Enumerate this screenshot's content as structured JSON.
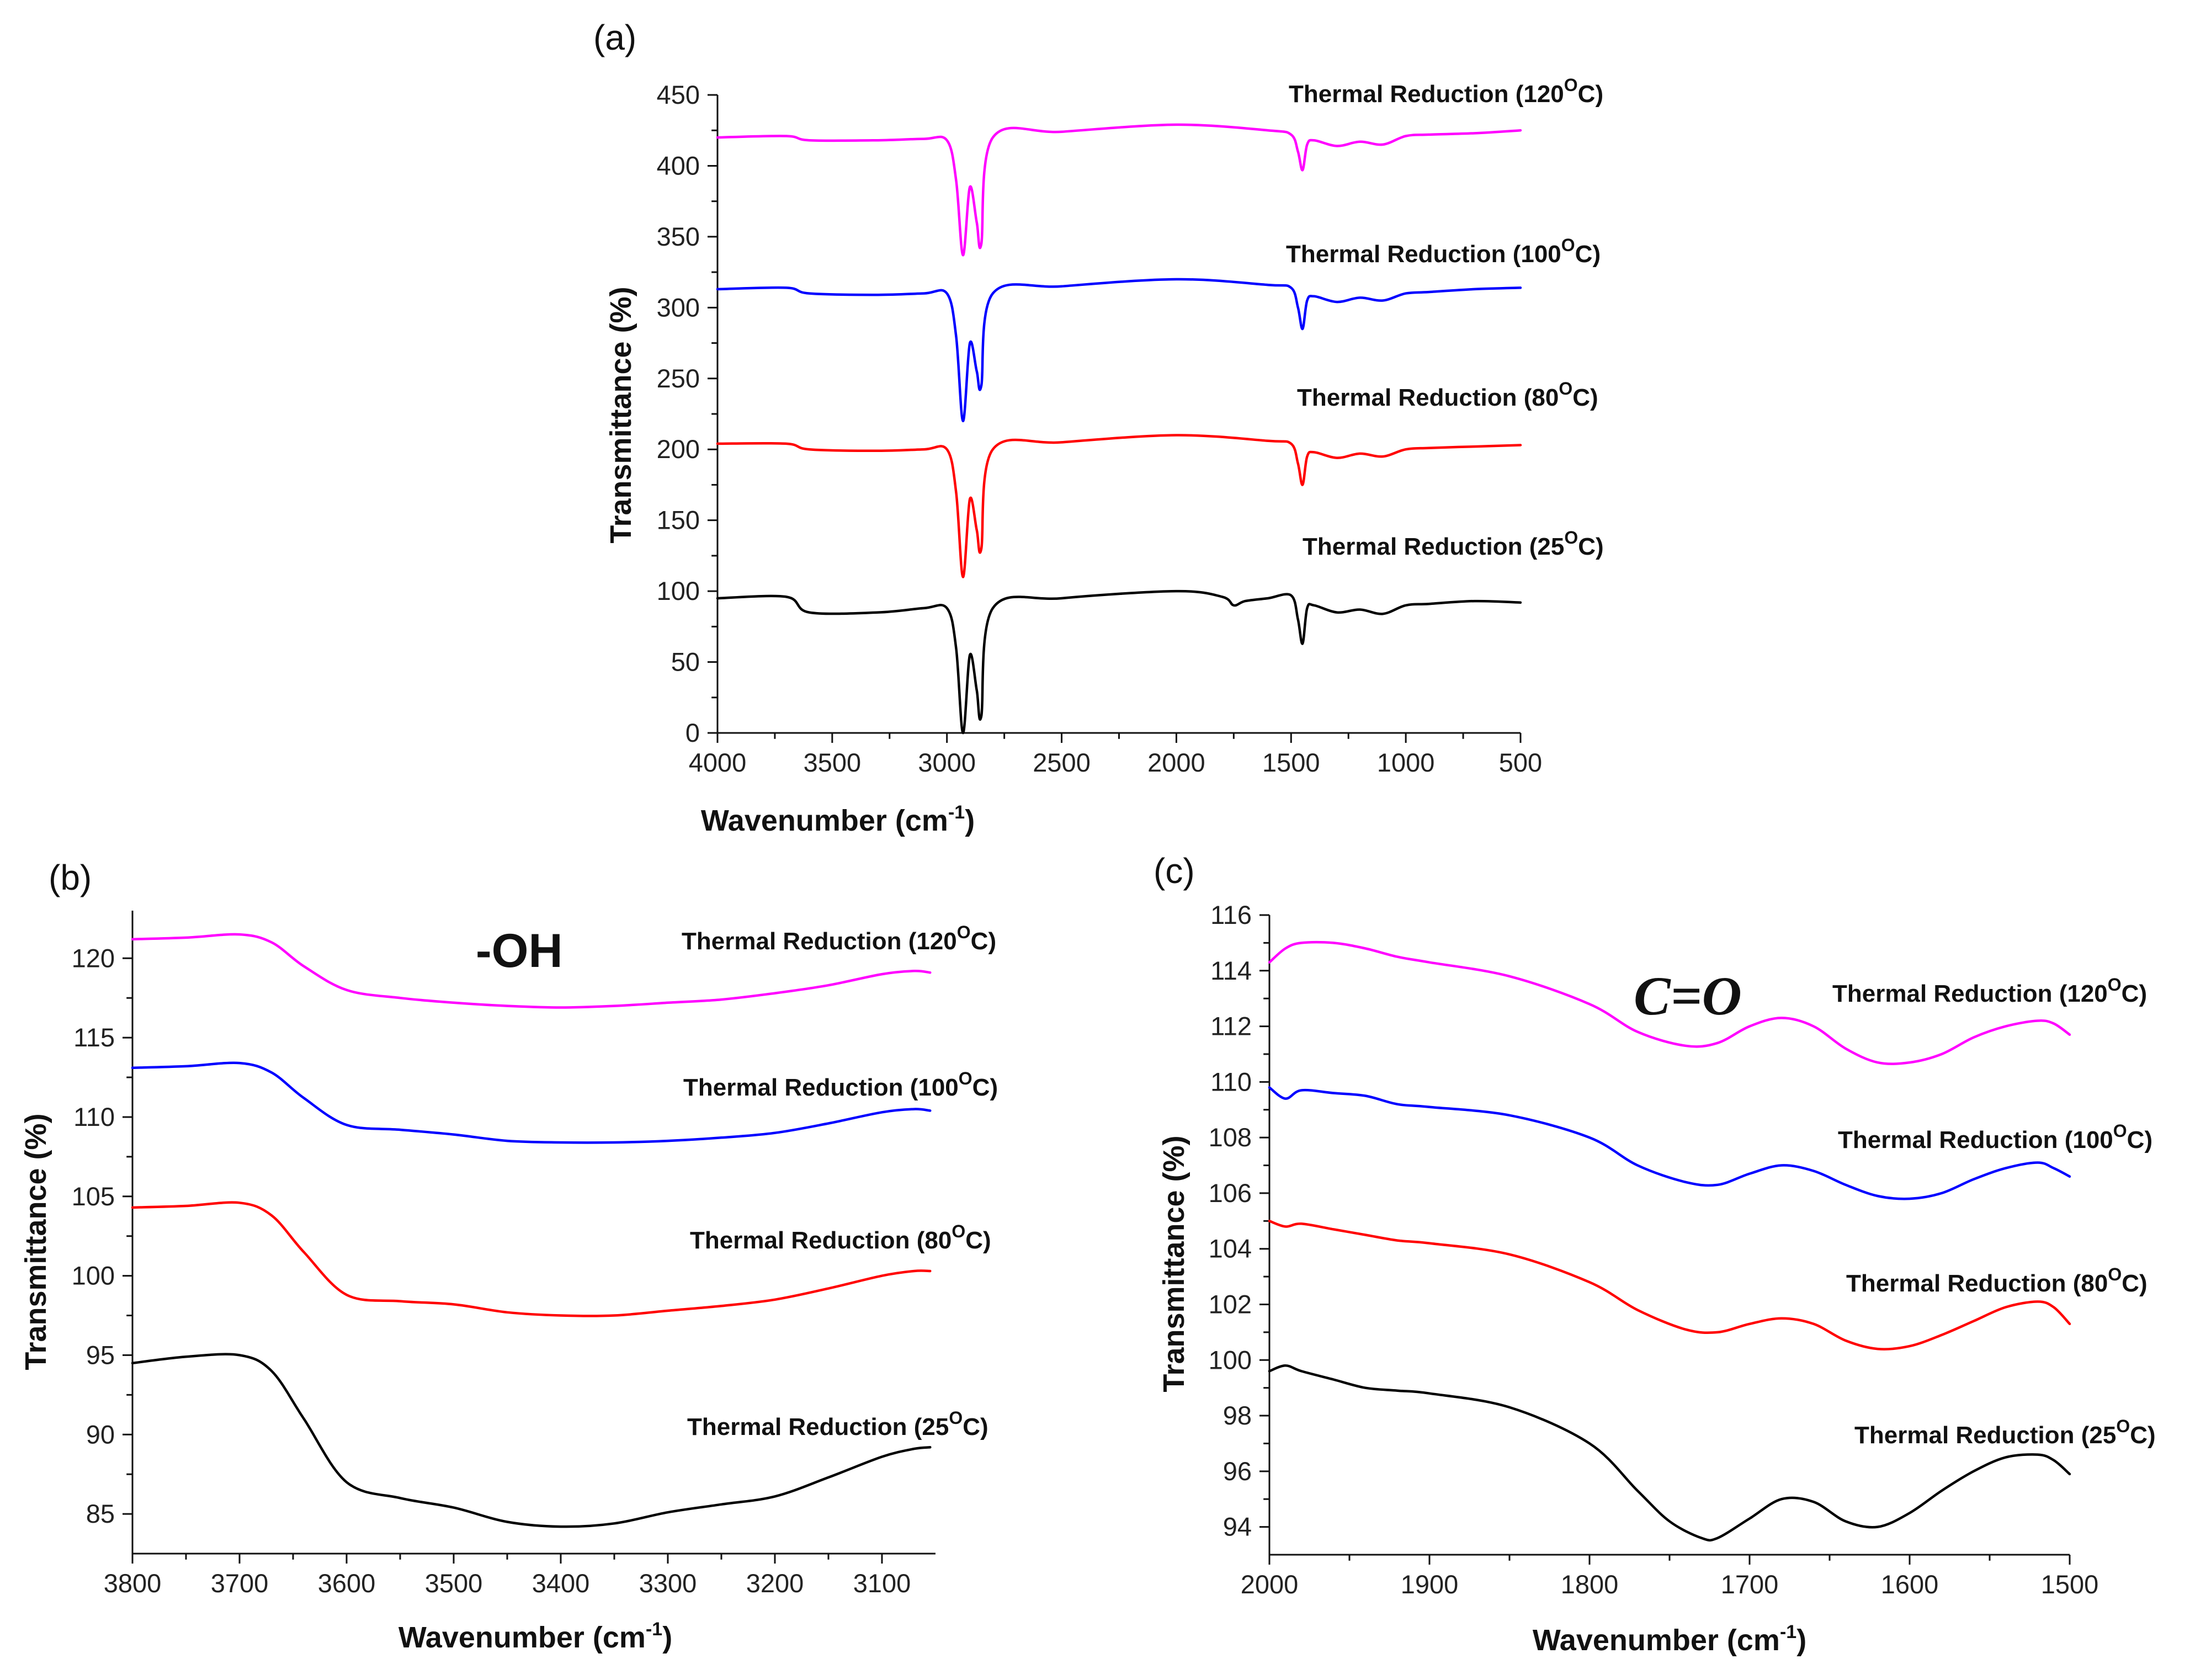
{
  "chart_data": [
    {
      "id": "a",
      "type": "line",
      "panel_label": "(a)",
      "xlabel": "Wavenumber (cm",
      "xlabel_sup": "-1",
      "xlabel_close": ")",
      "ylabel": "Transmittance (%)",
      "xlim": [
        4000,
        500
      ],
      "ylim": [
        0,
        450
      ],
      "xticks": [
        4000,
        3500,
        3000,
        2500,
        2000,
        1500,
        1000,
        500
      ],
      "yticks": [
        0,
        50,
        100,
        150,
        200,
        250,
        300,
        350,
        400,
        450
      ],
      "annotation": "",
      "series": [
        {
          "name": "Thermal Reduction (120",
          "sup": "O",
          "suffix": "C)",
          "color": "#ff00ff",
          "x": [
            4000,
            3700,
            3600,
            3300,
            3100,
            3000,
            2960,
            2930,
            2900,
            2870,
            2850,
            2800,
            2500,
            2000,
            1600,
            1500,
            1470,
            1450,
            1430,
            1400,
            1300,
            1200,
            1100,
            1000,
            900,
            700,
            500
          ],
          "y": [
            420,
            421,
            418,
            418,
            419,
            418,
            390,
            337,
            385,
            360,
            345,
            420,
            424,
            429,
            425,
            422,
            410,
            397,
            415,
            418,
            414,
            417,
            415,
            421,
            422,
            423,
            425
          ]
        },
        {
          "name": "Thermal Reduction (100",
          "sup": "O",
          "suffix": "C)",
          "color": "#0000ff",
          "x": [
            4000,
            3700,
            3600,
            3300,
            3100,
            3000,
            2960,
            2930,
            2900,
            2870,
            2850,
            2800,
            2500,
            2000,
            1600,
            1500,
            1470,
            1450,
            1430,
            1400,
            1300,
            1200,
            1100,
            1000,
            900,
            700,
            500
          ],
          "y": [
            313,
            314,
            310,
            309,
            310,
            310,
            280,
            220,
            275,
            255,
            245,
            310,
            315,
            320,
            316,
            314,
            300,
            285,
            305,
            308,
            304,
            307,
            305,
            310,
            311,
            313,
            314
          ]
        },
        {
          "name": "Thermal Reduction (80",
          "sup": "O",
          "suffix": "C)",
          "color": "#ff0000",
          "x": [
            4000,
            3700,
            3600,
            3300,
            3100,
            3000,
            2960,
            2930,
            2900,
            2870,
            2850,
            2800,
            2500,
            2000,
            1600,
            1500,
            1470,
            1450,
            1430,
            1400,
            1300,
            1200,
            1100,
            1000,
            900,
            700,
            500
          ],
          "y": [
            204,
            204,
            200,
            199,
            200,
            200,
            170,
            110,
            165,
            143,
            130,
            200,
            205,
            210,
            206,
            204,
            190,
            175,
            195,
            198,
            194,
            197,
            195,
            200,
            201,
            202,
            203
          ]
        },
        {
          "name": "Thermal Reduction (25",
          "sup": "O",
          "suffix": "C)",
          "color": "#000000",
          "x": [
            4000,
            3700,
            3600,
            3300,
            3100,
            3000,
            2960,
            2930,
            2900,
            2870,
            2850,
            2800,
            2500,
            2000,
            1800,
            1750,
            1700,
            1600,
            1500,
            1470,
            1450,
            1430,
            1400,
            1300,
            1200,
            1100,
            1000,
            900,
            700,
            500
          ],
          "y": [
            95,
            96,
            85,
            85,
            88,
            88,
            60,
            0,
            55,
            30,
            12,
            88,
            95,
            100,
            96,
            90,
            93,
            95,
            97,
            80,
            63,
            88,
            90,
            85,
            87,
            84,
            90,
            91,
            93,
            92
          ]
        }
      ]
    },
    {
      "id": "b",
      "type": "line",
      "panel_label": "(b)",
      "xlabel": "Wavenumber (cm",
      "xlabel_sup": "-1",
      "xlabel_close": ")",
      "ylabel": "Transmittance (%)",
      "xlim": [
        3800,
        3050
      ],
      "ylim": [
        82.5,
        123
      ],
      "xticks": [
        3800,
        3700,
        3600,
        3500,
        3400,
        3300,
        3200,
        3100
      ],
      "yticks": [
        85,
        90,
        95,
        100,
        105,
        110,
        115,
        120
      ],
      "annotation": "-OH",
      "series": [
        {
          "name": "Thermal Reduction (120",
          "sup": "O",
          "suffix": "C)",
          "color": "#ff00ff",
          "x": [
            3800,
            3750,
            3700,
            3670,
            3640,
            3600,
            3550,
            3500,
            3450,
            3400,
            3350,
            3300,
            3250,
            3200,
            3150,
            3100,
            3070,
            3055
          ],
          "y": [
            121.2,
            121.3,
            121.5,
            121.0,
            119.5,
            118.0,
            117.5,
            117.2,
            117.0,
            116.9,
            117.0,
            117.2,
            117.4,
            117.8,
            118.3,
            119.0,
            119.2,
            119.1
          ]
        },
        {
          "name": "Thermal Reduction (100",
          "sup": "O",
          "suffix": "C)",
          "color": "#0000ff",
          "x": [
            3800,
            3750,
            3700,
            3670,
            3640,
            3600,
            3550,
            3500,
            3450,
            3400,
            3350,
            3300,
            3250,
            3200,
            3150,
            3100,
            3070,
            3055
          ],
          "y": [
            113.1,
            113.2,
            113.4,
            112.8,
            111.2,
            109.5,
            109.2,
            108.9,
            108.5,
            108.4,
            108.4,
            108.5,
            108.7,
            109.0,
            109.6,
            110.3,
            110.5,
            110.4
          ]
        },
        {
          "name": "Thermal Reduction (80",
          "sup": "O",
          "suffix": "C)",
          "color": "#ff0000",
          "x": [
            3800,
            3750,
            3700,
            3670,
            3640,
            3600,
            3550,
            3500,
            3450,
            3400,
            3350,
            3300,
            3250,
            3200,
            3150,
            3100,
            3070,
            3055
          ],
          "y": [
            104.3,
            104.4,
            104.6,
            103.8,
            101.5,
            98.8,
            98.4,
            98.2,
            97.7,
            97.5,
            97.5,
            97.8,
            98.1,
            98.5,
            99.2,
            100.0,
            100.3,
            100.3
          ]
        },
        {
          "name": "Thermal Reduction (25",
          "sup": "O",
          "suffix": "C)",
          "color": "#000000",
          "x": [
            3800,
            3750,
            3700,
            3670,
            3640,
            3600,
            3550,
            3500,
            3450,
            3400,
            3350,
            3300,
            3250,
            3200,
            3150,
            3100,
            3070,
            3055
          ],
          "y": [
            94.5,
            94.9,
            95.0,
            94.0,
            91.0,
            87.0,
            86.0,
            85.4,
            84.5,
            84.2,
            84.4,
            85.1,
            85.6,
            86.1,
            87.3,
            88.6,
            89.1,
            89.2
          ]
        }
      ]
    },
    {
      "id": "c",
      "type": "line",
      "panel_label": "(c)",
      "xlabel": "Wavenumber (cm",
      "xlabel_sup": "-1",
      "xlabel_close": ")",
      "ylabel": "Transmittance (%)",
      "xlim": [
        2000,
        1500
      ],
      "ylim": [
        93,
        116
      ],
      "xticks": [
        2000,
        1900,
        1800,
        1700,
        1600,
        1500
      ],
      "yticks": [
        94,
        96,
        98,
        100,
        102,
        104,
        106,
        108,
        110,
        112,
        114,
        116
      ],
      "annotation": "C=O",
      "series": [
        {
          "name": "Thermal Reduction (120",
          "sup": "O",
          "suffix": "C)",
          "color": "#ff00ff",
          "x": [
            2000,
            1990,
            1980,
            1960,
            1940,
            1920,
            1900,
            1850,
            1800,
            1770,
            1740,
            1720,
            1700,
            1680,
            1660,
            1640,
            1620,
            1600,
            1580,
            1560,
            1540,
            1520,
            1510,
            1500
          ],
          "y": [
            114.3,
            114.8,
            115.0,
            115.0,
            114.8,
            114.5,
            114.3,
            113.8,
            112.8,
            111.8,
            111.3,
            111.4,
            112.0,
            112.3,
            112.0,
            111.2,
            110.7,
            110.7,
            111.0,
            111.6,
            112.0,
            112.2,
            112.1,
            111.7
          ]
        },
        {
          "name": "Thermal Reduction (100",
          "sup": "O",
          "suffix": "C)",
          "color": "#0000ff",
          "x": [
            2000,
            1990,
            1980,
            1960,
            1940,
            1920,
            1900,
            1850,
            1800,
            1770,
            1740,
            1720,
            1700,
            1680,
            1660,
            1640,
            1620,
            1600,
            1580,
            1560,
            1540,
            1520,
            1510,
            1500
          ],
          "y": [
            109.8,
            109.4,
            109.7,
            109.6,
            109.5,
            109.2,
            109.1,
            108.8,
            108.0,
            107.0,
            106.4,
            106.3,
            106.7,
            107.0,
            106.8,
            106.3,
            105.9,
            105.8,
            106.0,
            106.5,
            106.9,
            107.1,
            106.9,
            106.6
          ]
        },
        {
          "name": "Thermal Reduction (80",
          "sup": "O",
          "suffix": "C)",
          "color": "#ff0000",
          "x": [
            2000,
            1990,
            1980,
            1960,
            1940,
            1920,
            1900,
            1850,
            1800,
            1770,
            1740,
            1720,
            1700,
            1680,
            1660,
            1640,
            1620,
            1600,
            1580,
            1560,
            1540,
            1520,
            1510,
            1500
          ],
          "y": [
            105.0,
            104.8,
            104.9,
            104.7,
            104.5,
            104.3,
            104.2,
            103.8,
            102.8,
            101.8,
            101.1,
            101.0,
            101.3,
            101.5,
            101.3,
            100.7,
            100.4,
            100.5,
            100.9,
            101.4,
            101.9,
            102.1,
            101.9,
            101.3
          ]
        },
        {
          "name": "Thermal Reduction (25",
          "sup": "O",
          "suffix": "C)",
          "color": "#000000",
          "x": [
            2000,
            1990,
            1980,
            1960,
            1940,
            1920,
            1900,
            1850,
            1800,
            1770,
            1750,
            1730,
            1720,
            1700,
            1680,
            1660,
            1640,
            1620,
            1600,
            1580,
            1560,
            1540,
            1520,
            1510,
            1500
          ],
          "y": [
            99.6,
            99.8,
            99.6,
            99.3,
            99.0,
            98.9,
            98.8,
            98.3,
            97.0,
            95.3,
            94.2,
            93.6,
            93.6,
            94.3,
            95.0,
            94.9,
            94.2,
            94.0,
            94.5,
            95.3,
            96.0,
            96.5,
            96.6,
            96.4,
            95.9
          ]
        }
      ]
    }
  ]
}
